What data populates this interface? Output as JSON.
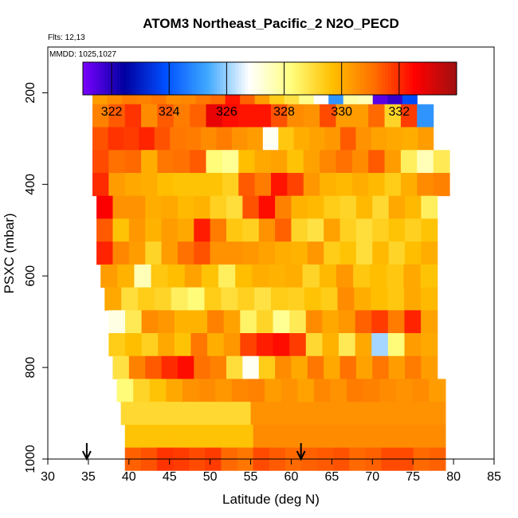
{
  "chart_data": {
    "type": "heatmap",
    "title": "ATOM3 Northeast_Pacific_2 N2O_PECD",
    "flights_label": "Flts: 12,13",
    "mmdd_label": "MMDD: 1025,1027",
    "xlabel": "Latitude (deg N)",
    "ylabel": "PSXC (mbar)",
    "xlim": [
      30,
      85
    ],
    "ylim": [
      1000,
      100
    ],
    "x_ticks": [
      "30",
      "35",
      "40",
      "45",
      "50",
      "55",
      "60",
      "65",
      "70",
      "75",
      "80",
      "85"
    ],
    "y_ticks": [
      "200",
      "400",
      "600",
      "800",
      "1000"
    ],
    "colorbar": {
      "range": [
        321,
        334
      ],
      "ticks": [
        "322",
        "324",
        "326",
        "328",
        "330",
        "332"
      ],
      "colors": [
        "#7b00ff",
        "#0000a0",
        "#0050ff",
        "#3fa8ff",
        "#ffffff",
        "#ffff80",
        "#ffc000",
        "#ff7000",
        "#ff0000",
        "#a01010"
      ]
    },
    "arrows_latitude": [
      34.8,
      61.2
    ],
    "rows": [
      {
        "p": 200,
        "x0": 35.5,
        "x1": 75.5,
        "v": [
          330.3,
          330.6,
          330.9,
          330.8,
          331.0,
          330.6,
          330.7,
          331.0,
          331.2,
          332.3,
          331.3,
          330.3,
          329.4,
          328.9,
          328.1,
          326.8,
          325.0,
          327.8,
          327.6,
          321.4,
          321.8,
          323.8
        ]
      },
      {
        "p": 250,
        "x0": 35.5,
        "x1": 77.5,
        "v": [
          330.8,
          331.4,
          331.9,
          330.6,
          331.4,
          330.9,
          331.3,
          332.9,
          332.4,
          332.3,
          332.3,
          331.5,
          330.6,
          330.5,
          331.6,
          330.3,
          330.3,
          331.2,
          329.2,
          331.8,
          325.0
        ]
      },
      {
        "p": 300,
        "x0": 35.5,
        "x1": 77.5,
        "v": [
          331.5,
          331.9,
          331.8,
          332.1,
          331.5,
          331.0,
          330.9,
          330.6,
          330.9,
          330.5,
          330.3,
          326.9,
          329.5,
          330.0,
          330.2,
          330.4,
          331.4,
          330.5,
          330.2,
          330.1,
          330.0,
          330.3
        ]
      },
      {
        "p": 350,
        "x0": 35.5,
        "x1": 79.5,
        "v": [
          331.6,
          331.1,
          331.2,
          330.0,
          331.0,
          331.1,
          331.4,
          328.3,
          328.0,
          329.7,
          330.1,
          330.2,
          329.6,
          330.2,
          330.7,
          331.1,
          330.6,
          331.4,
          330.3,
          328.6,
          327.6,
          328.7
        ]
      },
      {
        "p": 400,
        "x0": 35.5,
        "x1": 79.5,
        "v": [
          332.0,
          330.3,
          330.1,
          330.0,
          329.7,
          329.6,
          329.6,
          329.6,
          329.3,
          331.4,
          330.9,
          332.3,
          331.7,
          330.4,
          329.9,
          329.8,
          330.0,
          329.8,
          329.4,
          330.0,
          330.6,
          330.8
        ]
      },
      {
        "p": 450,
        "x0": 36.0,
        "x1": 78.0,
        "v": [
          332.6,
          330.5,
          330.5,
          330.0,
          330.1,
          329.8,
          329.9,
          329.3,
          329.0,
          331.5,
          332.4,
          330.8,
          329.9,
          329.8,
          329.4,
          329.2,
          329.8,
          329.1,
          330.1,
          329.8,
          328.6
        ]
      },
      {
        "p": 500,
        "x0": 36.0,
        "x1": 78.0,
        "v": [
          331.4,
          329.6,
          330.4,
          329.9,
          330.3,
          330.1,
          332.2,
          330.9,
          329.5,
          329.3,
          330.5,
          331.3,
          329.2,
          328.9,
          330.2,
          329.3,
          329.0,
          329.3,
          329.6,
          329.3,
          329.6
        ]
      },
      {
        "p": 550,
        "x0": 36.0,
        "x1": 78.0,
        "v": [
          332.1,
          330.7,
          330.3,
          329.2,
          330.3,
          331.1,
          331.5,
          330.5,
          330.5,
          330.4,
          330.2,
          330.0,
          329.9,
          330.4,
          329.4,
          329.6,
          329.0,
          329.8,
          329.2,
          329.7,
          330.0
        ]
      },
      {
        "p": 600,
        "x0": 36.5,
        "x1": 78.0,
        "v": [
          330.3,
          329.9,
          327.6,
          329.5,
          329.7,
          330.2,
          329.6,
          328.6,
          329.7,
          330.0,
          329.9,
          330.0,
          329.2,
          329.8,
          330.4,
          329.5,
          329.7,
          329.5,
          330.1,
          329.6
        ]
      },
      {
        "p": 650,
        "x0": 37.0,
        "x1": 78.0,
        "v": [
          330.1,
          329.0,
          329.4,
          329.2,
          328.6,
          328.3,
          329.4,
          329.0,
          329.3,
          328.9,
          329.4,
          329.3,
          329.6,
          329.4,
          330.6,
          330.0,
          329.7,
          329.5,
          330.1,
          329.8
        ]
      },
      {
        "p": 700,
        "x0": 37.5,
        "x1": 78.0,
        "v": [
          327.1,
          328.7,
          330.6,
          330.4,
          329.9,
          329.9,
          330.8,
          330.2,
          328.5,
          329.2,
          328.0,
          328.7,
          330.6,
          330.1,
          330.4,
          331.3,
          331.8,
          330.9,
          332.1,
          330.2
        ]
      },
      {
        "p": 750,
        "x0": 37.5,
        "x1": 78.0,
        "v": [
          329.4,
          329.7,
          329.3,
          330.1,
          329.6,
          331.0,
          330.0,
          330.4,
          331.7,
          332.2,
          332.4,
          331.8,
          329.1,
          329.9,
          328.7,
          330.1,
          326.1,
          328.3,
          330.3,
          330.1
        ]
      },
      {
        "p": 800,
        "x0": 38.0,
        "x1": 78.0,
        "v": [
          328.9,
          330.8,
          331.4,
          332.0,
          332.4,
          331.1,
          330.8,
          329.0,
          326.9,
          329.4,
          330.6,
          330.1,
          331.0,
          330.1,
          331.1,
          330.2,
          331.0,
          330.3,
          330.9,
          330.3
        ]
      },
      {
        "p": 850,
        "x0": 38.5,
        "x1": 79.0,
        "v": [
          328.3,
          329.2,
          329.6,
          330.1,
          330.5,
          330.6,
          330.4,
          330.7,
          330.8,
          330.3,
          330.5,
          330.2,
          330.7,
          330.5,
          330.9,
          330.8,
          330.6,
          330.5,
          330.6,
          330.3
        ]
      },
      {
        "p": 900,
        "x0": 39.0,
        "x1": 79.0,
        "v": [
          329.1,
          329.1,
          329.1,
          329.1,
          329.1,
          329.1,
          329.1,
          329.1,
          330.5,
          330.5,
          330.5,
          330.5,
          330.5,
          330.5,
          330.5,
          330.5,
          330.5,
          330.5,
          330.5,
          330.5
        ]
      },
      {
        "p": 950,
        "x0": 39.5,
        "x1": 79.0,
        "v": [
          329.6,
          329.6,
          329.6,
          329.6,
          329.6,
          329.6,
          329.6,
          329.6,
          330.6,
          330.6,
          330.6,
          330.6,
          330.6,
          330.6,
          330.6,
          330.6,
          330.6,
          330.6,
          330.6,
          330.6
        ]
      },
      {
        "p": 1000,
        "x0": 39.5,
        "x1": 79.0,
        "v": [
          331.3,
          331.5,
          331.9,
          331.8,
          331.6,
          331.8,
          331.2,
          331.0,
          331.6,
          331.4,
          331.2,
          331.3,
          331.4,
          331.5,
          331.2,
          331.3,
          331.6,
          331.6,
          331.2,
          331.3
        ]
      }
    ]
  }
}
